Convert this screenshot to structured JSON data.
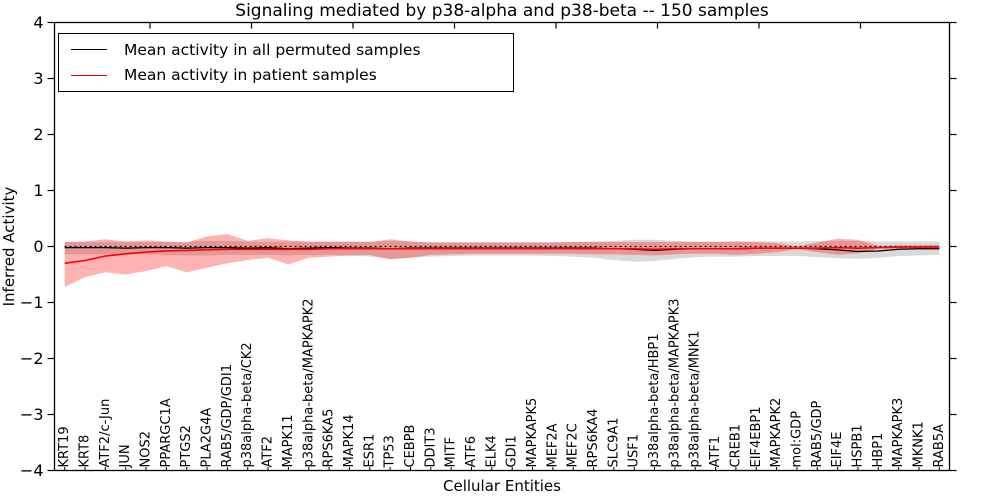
{
  "chart_data": {
    "type": "line",
    "title": "Signaling mediated by p38-alpha and p38-beta -- 150 samples",
    "xlabel": "Cellular Entities",
    "ylabel": "Inferred Activity",
    "ylim": [
      -4,
      4
    ],
    "yticks": [
      4,
      3,
      2,
      1,
      0,
      -1,
      -2,
      -3,
      -4
    ],
    "ytick_labels": [
      "4",
      "3",
      "2",
      "1",
      "0",
      "−1",
      "−2",
      "−3",
      "−4"
    ],
    "grid": false,
    "legend_position": "upper left",
    "zero_line": {
      "y": 0,
      "style": "dotted",
      "color": "#000000"
    },
    "top_tick_x": [
      150,
      251.5,
      353,
      454.5,
      556,
      657.5,
      759,
      860.5
    ],
    "categories": [
      "KRT19",
      "KRT8",
      "ATF2/c-Jun",
      "JUN",
      "NOS2",
      "PPARGC1A",
      "PTGS2",
      "PLA2G4A",
      "RAB5/GDP/GDI1",
      "p38alpha-beta/CK2",
      "ATF2",
      "MAPK11",
      "p38alpha-beta/MAPKAPK2",
      "RPS6KA5",
      "MAPK14",
      "ESR1",
      "TP53",
      "CEBPB",
      "DDIT3",
      "MITF",
      "ATF6",
      "ELK4",
      "GDI1",
      "MAPKAPK5",
      "MEF2A",
      "MEF2C",
      "RPS6KA4",
      "SLC9A1",
      "USF1",
      "p38alpha-beta/HBP1",
      "p38alpha-beta/MAPKAPK3",
      "p38alpha-beta/MNK1",
      "ATF1",
      "CREB1",
      "EIF4EBP1",
      "MAPKAPK2",
      "mol:GDP",
      "RAB5/GDP",
      "EIF4E",
      "HSPB1",
      "HBP1",
      "MAPKAPK3",
      "MKNK1",
      "RAB5A"
    ],
    "series": [
      {
        "name": "Mean activity in all permuted samples",
        "color": "#000000",
        "band_color": "rgba(0,0,0,0.15)",
        "values": [
          -0.02,
          -0.02,
          -0.02,
          -0.03,
          -0.02,
          -0.02,
          -0.03,
          -0.02,
          -0.02,
          -0.03,
          -0.02,
          -0.04,
          -0.03,
          -0.02,
          -0.03,
          -0.03,
          -0.04,
          -0.03,
          -0.03,
          -0.03,
          -0.03,
          -0.03,
          -0.03,
          -0.03,
          -0.03,
          -0.03,
          -0.03,
          -0.04,
          -0.05,
          -0.07,
          -0.05,
          -0.04,
          -0.04,
          -0.04,
          -0.03,
          -0.03,
          -0.03,
          -0.04,
          -0.06,
          -0.09,
          -0.08,
          -0.05,
          -0.04,
          -0.04
        ],
        "upper": [
          0.08,
          0.08,
          0.08,
          0.08,
          0.08,
          0.08,
          0.09,
          0.1,
          0.1,
          0.09,
          0.08,
          0.09,
          0.08,
          0.08,
          0.08,
          0.09,
          0.1,
          0.09,
          0.08,
          0.08,
          0.08,
          0.08,
          0.08,
          0.08,
          0.08,
          0.08,
          0.09,
          0.1,
          0.12,
          0.12,
          0.1,
          0.09,
          0.09,
          0.09,
          0.09,
          0.09,
          0.09,
          0.1,
          0.1,
          0.1,
          0.09,
          0.09,
          0.09,
          0.09
        ],
        "lower": [
          -0.14,
          -0.14,
          -0.14,
          -0.14,
          -0.14,
          -0.15,
          -0.16,
          -0.16,
          -0.15,
          -0.15,
          -0.15,
          -0.16,
          -0.15,
          -0.15,
          -0.16,
          -0.18,
          -0.22,
          -0.2,
          -0.18,
          -0.17,
          -0.16,
          -0.16,
          -0.16,
          -0.16,
          -0.17,
          -0.18,
          -0.2,
          -0.24,
          -0.27,
          -0.26,
          -0.22,
          -0.19,
          -0.18,
          -0.18,
          -0.17,
          -0.17,
          -0.17,
          -0.19,
          -0.21,
          -0.22,
          -0.2,
          -0.17,
          -0.16,
          -0.15
        ]
      },
      {
        "name": "Mean activity in patient samples",
        "color": "#ff0000",
        "band_color": "rgba(255,0,0,0.30)",
        "values": [
          -0.3,
          -0.25,
          -0.17,
          -0.13,
          -0.1,
          -0.08,
          -0.07,
          -0.06,
          -0.05,
          -0.05,
          -0.05,
          -0.05,
          -0.05,
          -0.04,
          -0.04,
          -0.04,
          -0.04,
          -0.04,
          -0.04,
          -0.04,
          -0.04,
          -0.04,
          -0.04,
          -0.04,
          -0.04,
          -0.04,
          -0.04,
          -0.04,
          -0.04,
          -0.05,
          -0.04,
          -0.04,
          -0.04,
          -0.04,
          -0.03,
          -0.03,
          -0.03,
          -0.03,
          -0.02,
          -0.03,
          -0.02,
          -0.01,
          -0.01,
          -0.01
        ],
        "upper": [
          0.08,
          0.09,
          0.13,
          0.09,
          0.11,
          0.09,
          0.07,
          0.18,
          0.22,
          0.1,
          0.15,
          0.11,
          0.09,
          0.09,
          0.09,
          0.08,
          0.13,
          0.09,
          0.07,
          0.07,
          0.07,
          0.07,
          0.07,
          0.07,
          0.07,
          0.08,
          0.08,
          0.08,
          0.08,
          0.08,
          0.08,
          0.08,
          0.08,
          0.09,
          0.08,
          0.06,
          0.0,
          0.07,
          0.14,
          0.12,
          0.01,
          0.02,
          0.02,
          0.03
        ],
        "lower": [
          -0.72,
          -0.55,
          -0.46,
          -0.5,
          -0.44,
          -0.35,
          -0.46,
          -0.38,
          -0.3,
          -0.24,
          -0.2,
          -0.32,
          -0.2,
          -0.18,
          -0.16,
          -0.15,
          -0.23,
          -0.2,
          -0.15,
          -0.14,
          -0.13,
          -0.13,
          -0.13,
          -0.13,
          -0.13,
          -0.13,
          -0.14,
          -0.14,
          -0.15,
          -0.16,
          -0.14,
          -0.13,
          -0.13,
          -0.15,
          -0.13,
          -0.1,
          -0.05,
          -0.1,
          -0.15,
          -0.12,
          -0.04,
          -0.04,
          -0.05,
          -0.05
        ]
      }
    ],
    "legend": [
      {
        "label": "Mean activity in all permuted samples",
        "color": "#000000"
      },
      {
        "label": "Mean activity in patient samples",
        "color": "#ff0000"
      }
    ]
  }
}
